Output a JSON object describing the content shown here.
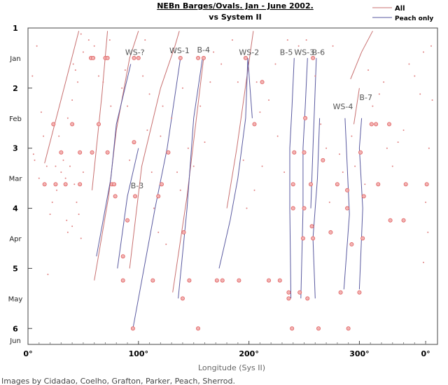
{
  "chart_data": {
    "type": "scatter",
    "title": "NEBn Barges/Ovals. Jan - June 2002.",
    "subtitle": "vs System II",
    "xlabel": "Longitude (Sys II)",
    "credit": "Images by Cidadao, Coelho, Grafton, Parker, Peach, Sherrod.",
    "xlim": [
      0,
      370
    ],
    "ylim": [
      1,
      6.25
    ],
    "x_ticks": [
      "0°",
      "100°",
      "200°",
      "300°",
      "0°"
    ],
    "y_ticks": [
      "1",
      "2",
      "3",
      "4",
      "5",
      "6"
    ],
    "month_labels": [
      {
        "label": "Jan",
        "y": 1.5
      },
      {
        "label": "Feb",
        "y": 2.5
      },
      {
        "label": "Mar",
        "y": 3.5
      },
      {
        "label": "Apr",
        "y": 4.5
      },
      {
        "label": "May",
        "y": 5.5
      },
      {
        "label": "Jun",
        "y": 6.25
      }
    ],
    "legend": [
      {
        "label": "All",
        "color": "#c87070"
      },
      {
        "label": "Peach only",
        "color": "#5a5aa0"
      }
    ],
    "grid": false,
    "colors": {
      "all": "#c87070",
      "peach": "#5a5aa0",
      "point": "#e08080",
      "big_point": "#e06060"
    },
    "feature_labels": [
      {
        "label": "WS-?",
        "x": 88,
        "y": 1.45
      },
      {
        "label": "WS-1",
        "x": 128,
        "y": 1.42
      },
      {
        "label": "B-4",
        "x": 153,
        "y": 1.41
      },
      {
        "label": "WS-2",
        "x": 191,
        "y": 1.45
      },
      {
        "label": "B-5",
        "x": 228,
        "y": 1.45
      },
      {
        "label": "WS-3",
        "x": 241,
        "y": 1.45
      },
      {
        "label": "B-6",
        "x": 257,
        "y": 1.45
      },
      {
        "label": "WS-4",
        "x": 276,
        "y": 2.35
      },
      {
        "label": "B-7",
        "x": 300,
        "y": 2.2
      },
      {
        "label": "B-3",
        "x": 93,
        "y": 3.67
      }
    ],
    "series": [
      {
        "name": "All",
        "lines": [
          [
            [
              15,
              3.25
            ],
            [
              46,
              1.05
            ]
          ],
          [
            [
              58,
              3.7
            ],
            [
              67,
              2.1
            ],
            [
              72,
              1.05
            ]
          ],
          [
            [
              60,
              5.2
            ],
            [
              73,
              3.8
            ],
            [
              80,
              2.7
            ],
            [
              92,
              1.5
            ],
            [
              100,
              1.05
            ]
          ],
          [
            [
              92,
              5.0
            ],
            [
              103,
              3.3
            ],
            [
              120,
              2.0
            ],
            [
              133,
              1.3
            ],
            [
              137,
              1.05
            ]
          ],
          [
            [
              131,
              5.4
            ],
            [
              144,
              3.8
            ],
            [
              159,
              1.5
            ]
          ],
          [
            [
              180,
              4.0
            ],
            [
              189,
              3.0
            ],
            [
              204,
              1.05
            ]
          ],
          [
            [
              292,
              1.85
            ],
            [
              302,
              1.4
            ],
            [
              312,
              1.05
            ]
          ],
          [
            [
              295,
              2.6
            ],
            [
              300,
              2.0
            ]
          ]
        ]
      },
      {
        "name": "Peach only",
        "lines": [
          [
            [
              62,
              4.8
            ],
            [
              75,
              3.5
            ],
            [
              80,
              2.6
            ],
            [
              93,
              1.6
            ]
          ],
          [
            [
              81,
              5.0
            ],
            [
              90,
              3.8
            ],
            [
              100,
              3.0
            ]
          ],
          [
            [
              95,
              6.0
            ],
            [
              115,
              4.0
            ],
            [
              126,
              3.0
            ],
            [
              138,
              1.5
            ]
          ],
          [
            [
              136,
              5.5
            ],
            [
              144,
              4.0
            ],
            [
              150,
              2.5
            ],
            [
              158,
              1.5
            ]
          ],
          [
            [
              173,
              5.0
            ],
            [
              183,
              4.2
            ],
            [
              190,
              3.5
            ],
            [
              197,
              2.5
            ],
            [
              199,
              1.5
            ],
            [
              203,
              2.5
            ]
          ],
          [
            [
              238,
              5.5
            ],
            [
              237,
              4.0
            ],
            [
              237,
              3.0
            ],
            [
              239,
              2.3
            ],
            [
              241,
              1.5
            ]
          ],
          [
            [
              247,
              5.5
            ],
            [
              249,
              4.0
            ],
            [
              249,
              3.0
            ],
            [
              251,
              2.3
            ],
            [
              253,
              1.5
            ]
          ],
          [
            [
              256,
              4.0
            ],
            [
              258,
              3.0
            ],
            [
              261,
              1.5
            ]
          ],
          [
            [
              260,
              5.5
            ],
            [
              258,
              4.5
            ],
            [
              262,
              3.5
            ],
            [
              264,
              2.5
            ]
          ],
          [
            [
              286,
              5.35
            ],
            [
              291,
              4.1
            ],
            [
              287,
              2.5
            ]
          ],
          [
            [
              300,
              5.35
            ],
            [
              303,
              4.0
            ],
            [
              300,
              3.0
            ],
            [
              302,
              2.5
            ]
          ]
        ]
      }
    ],
    "points_big": [
      [
        15,
        3.6
      ],
      [
        23,
        2.6
      ],
      [
        40,
        2.6
      ],
      [
        47,
        3.6
      ],
      [
        57,
        1.5
      ],
      [
        59,
        1.5
      ],
      [
        70,
        1.5
      ],
      [
        72,
        1.5
      ],
      [
        58,
        3.07
      ],
      [
        72,
        3.07
      ],
      [
        76,
        3.6
      ],
      [
        78,
        3.6
      ],
      [
        79,
        3.8
      ],
      [
        86,
        4.8
      ],
      [
        96,
        2.9
      ],
      [
        96,
        1.5
      ],
      [
        100,
        1.5
      ],
      [
        90,
        4.2
      ],
      [
        97,
        3.8
      ],
      [
        86,
        5.2
      ],
      [
        113,
        5.2
      ],
      [
        118,
        3.8
      ],
      [
        121,
        3.6
      ],
      [
        127,
        3.07
      ],
      [
        138,
        1.5
      ],
      [
        141,
        4.4
      ],
      [
        146,
        5.2
      ],
      [
        140,
        5.5
      ],
      [
        154,
        1.5
      ],
      [
        159,
        1.5
      ],
      [
        171,
        5.2
      ],
      [
        176,
        5.2
      ],
      [
        191,
        5.2
      ],
      [
        197,
        1.5
      ],
      [
        205,
        2.6
      ],
      [
        218,
        5.2
      ],
      [
        228,
        5.2
      ],
      [
        236,
        5.4
      ],
      [
        236,
        5.5
      ],
      [
        240,
        4.0
      ],
      [
        240,
        3.6
      ],
      [
        241,
        3.07
      ],
      [
        246,
        5.4
      ],
      [
        249,
        4.5
      ],
      [
        250,
        4.0
      ],
      [
        250,
        3.07
      ],
      [
        251,
        2.5
      ],
      [
        253,
        5.5
      ],
      [
        256,
        3.6
      ],
      [
        258,
        1.5
      ],
      [
        258,
        4.5
      ],
      [
        257,
        4.3
      ],
      [
        267,
        3.2
      ],
      [
        274,
        4.4
      ],
      [
        283,
        5.4
      ],
      [
        289,
        4.0
      ],
      [
        289,
        3.7
      ],
      [
        290,
        6.0
      ],
      [
        293,
        4.6
      ],
      [
        300,
        5.4
      ],
      [
        301,
        3.07
      ],
      [
        303,
        4.5
      ],
      [
        304,
        3.8
      ],
      [
        311,
        2.6
      ],
      [
        315,
        2.6
      ],
      [
        317,
        3.6
      ],
      [
        327,
        2.6
      ],
      [
        328,
        4.2
      ],
      [
        340,
        4.2
      ],
      [
        342,
        3.6
      ],
      [
        361,
        3.6
      ],
      [
        95,
        6.0
      ],
      [
        154,
        6.0
      ],
      [
        239,
        6.0
      ],
      [
        263,
        6.0
      ],
      [
        280,
        3.6
      ],
      [
        212,
        1.9
      ],
      [
        47,
        3.07
      ],
      [
        30,
        3.07
      ],
      [
        34,
        3.6
      ],
      [
        25,
        3.6
      ],
      [
        64,
        2.6
      ]
    ],
    "points_small": [
      [
        5,
        3.1
      ],
      [
        6,
        3.2
      ],
      [
        10,
        3.5
      ],
      [
        12,
        2.4
      ],
      [
        14,
        2.8
      ],
      [
        17,
        3.3
      ],
      [
        20,
        4.1
      ],
      [
        22,
        3.9
      ],
      [
        25,
        3.3
      ],
      [
        26,
        3.7
      ],
      [
        28,
        2.8
      ],
      [
        30,
        3.4
      ],
      [
        32,
        3.2
      ],
      [
        34,
        3.5
      ],
      [
        36,
        2.5
      ],
      [
        38,
        3.3
      ],
      [
        40,
        4.3
      ],
      [
        42,
        3.6
      ],
      [
        44,
        3.9
      ],
      [
        46,
        4.1
      ],
      [
        48,
        4.5
      ],
      [
        50,
        3.4
      ],
      [
        35,
        4.2
      ],
      [
        36,
        4.4
      ],
      [
        18,
        5.1
      ],
      [
        45,
        1.9
      ],
      [
        43,
        1.7
      ],
      [
        40,
        2.2
      ],
      [
        41,
        1.6
      ],
      [
        50,
        1.4
      ],
      [
        55,
        1.2
      ],
      [
        48,
        1.1
      ],
      [
        60,
        1.3
      ],
      [
        64,
        1.8
      ],
      [
        68,
        1.9
      ],
      [
        74,
        1.2
      ],
      [
        75,
        2.3
      ],
      [
        85,
        2.0
      ],
      [
        88,
        1.7
      ],
      [
        90,
        2.3
      ],
      [
        92,
        3.2
      ],
      [
        106,
        1.2
      ],
      [
        104,
        1.8
      ],
      [
        110,
        2.1
      ],
      [
        108,
        2.7
      ],
      [
        112,
        3.4
      ],
      [
        114,
        4.0
      ],
      [
        118,
        4.4
      ],
      [
        120,
        2.8
      ],
      [
        122,
        2.3
      ],
      [
        125,
        4.6
      ],
      [
        130,
        2.5
      ],
      [
        135,
        3.4
      ],
      [
        138,
        3.7
      ],
      [
        140,
        2.0
      ],
      [
        145,
        3.0
      ],
      [
        150,
        3.3
      ],
      [
        156,
        2.3
      ],
      [
        160,
        2.9
      ],
      [
        165,
        1.9
      ],
      [
        168,
        1.4
      ],
      [
        175,
        1.6
      ],
      [
        185,
        1.2
      ],
      [
        190,
        1.9
      ],
      [
        195,
        3.2
      ],
      [
        198,
        4.0
      ],
      [
        205,
        3.7
      ],
      [
        207,
        1.9
      ],
      [
        210,
        2.4
      ],
      [
        212,
        3.3
      ],
      [
        218,
        2.2
      ],
      [
        224,
        1.6
      ],
      [
        226,
        2.8
      ],
      [
        232,
        3.4
      ],
      [
        235,
        1.2
      ],
      [
        245,
        1.3
      ],
      [
        252,
        1.2
      ],
      [
        260,
        1.8
      ],
      [
        265,
        2.6
      ],
      [
        270,
        3.0
      ],
      [
        273,
        3.9
      ],
      [
        276,
        1.3
      ],
      [
        282,
        3.1
      ],
      [
        285,
        3.4
      ],
      [
        293,
        2.8
      ],
      [
        296,
        3.3
      ],
      [
        305,
        3.6
      ],
      [
        308,
        1.7
      ],
      [
        312,
        2.3
      ],
      [
        318,
        2.1
      ],
      [
        322,
        1.9
      ],
      [
        325,
        3.0
      ],
      [
        330,
        3.3
      ],
      [
        335,
        2.9
      ],
      [
        340,
        2.7
      ],
      [
        345,
        1.6
      ],
      [
        350,
        1.8
      ],
      [
        355,
        2.1
      ],
      [
        358,
        1.4
      ],
      [
        360,
        3.9
      ],
      [
        362,
        4.4
      ],
      [
        365,
        1.3
      ],
      [
        366,
        2.2
      ],
      [
        358,
        4.9
      ],
      [
        363,
        3.0
      ],
      [
        8,
        1.3
      ],
      [
        4,
        1.8
      ]
    ]
  }
}
